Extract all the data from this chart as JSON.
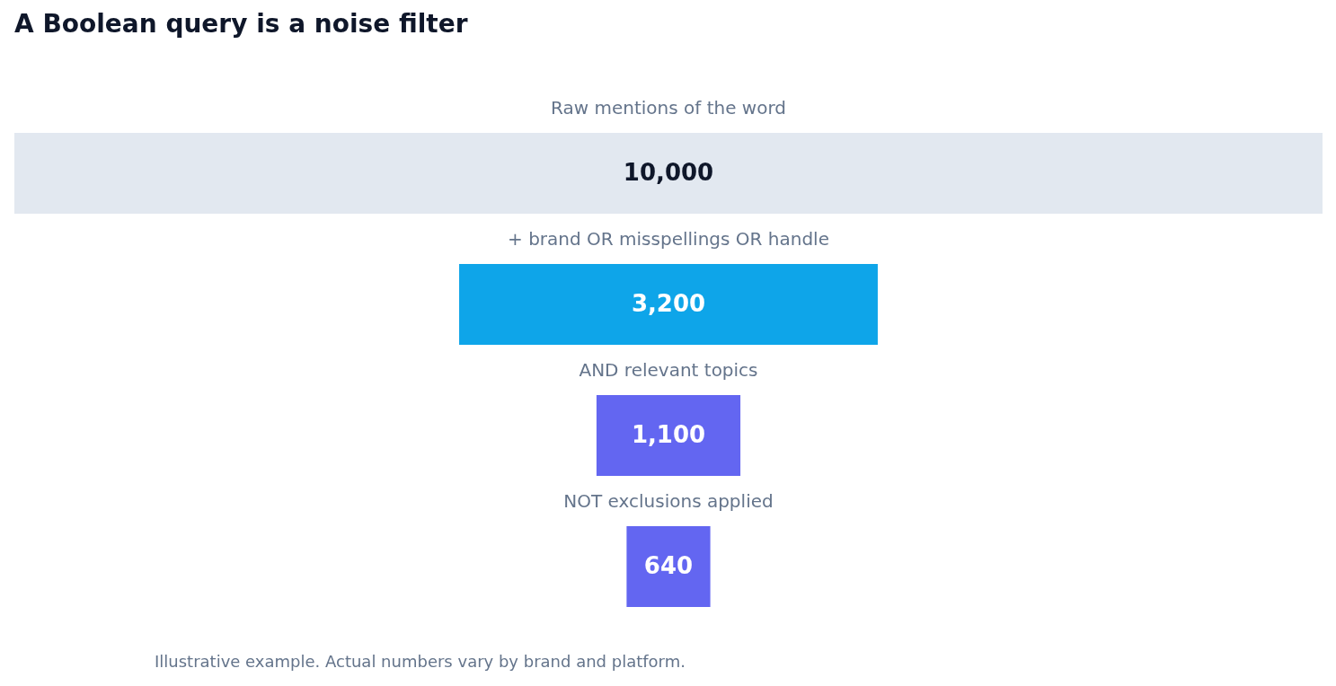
{
  "chart_data": {
    "type": "other",
    "title": "A Boolean query is a noise filter",
    "categories": [
      "Raw mentions of the word",
      "+ brand OR misspellings OR handle",
      "AND relevant topics",
      "NOT exclusions applied"
    ],
    "values": [
      10000,
      3200,
      1100,
      640
    ],
    "colors": [
      "#e2e8f0",
      "#0ea5e9",
      "#6366f1",
      "#6366f1"
    ],
    "value_labels": [
      "10,000",
      "3,200",
      "1,100",
      "640"
    ],
    "annotations": [
      "Illustrative example. Actual numbers vary by brand and platform."
    ]
  }
}
